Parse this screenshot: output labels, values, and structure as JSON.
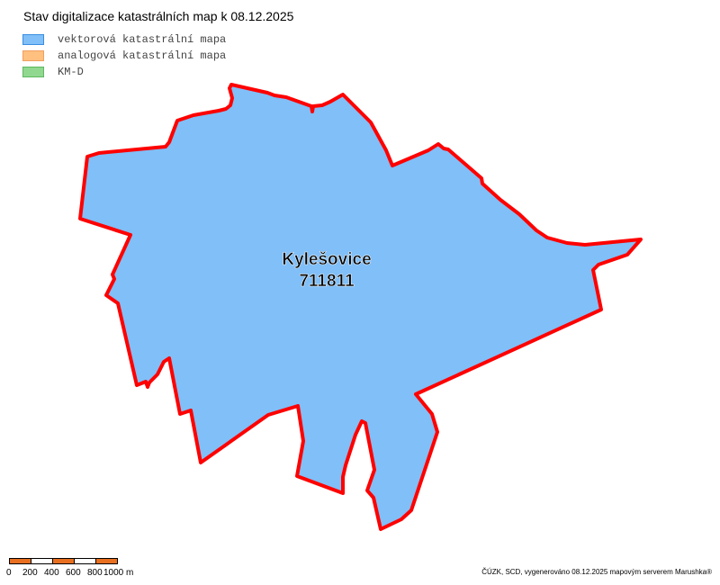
{
  "title": "Stav digitalizace katastrálních map k 08.12.2025",
  "legend": [
    {
      "label": "vektorová katastrální mapa",
      "fill": "#80bff8",
      "stroke": "#3a8ee0"
    },
    {
      "label": "analogová katastrální mapa",
      "fill": "#ffc080",
      "stroke": "#f0a060"
    },
    {
      "label": "KM-D",
      "fill": "#90d890",
      "stroke": "#60b860"
    }
  ],
  "map": {
    "area_name": "Kylešovice",
    "area_code": "711811",
    "fill": "#80bff8",
    "boundary_color": "#ff0000"
  },
  "scale": {
    "ticks": [
      "0",
      "200",
      "400",
      "600",
      "800",
      "1000 m"
    ],
    "colors": [
      "#e87020",
      "#ffffff"
    ]
  },
  "credit": "ČÚZK, SCD, vygenerováno 08.12.2025 mapovým serverem Marushka®"
}
